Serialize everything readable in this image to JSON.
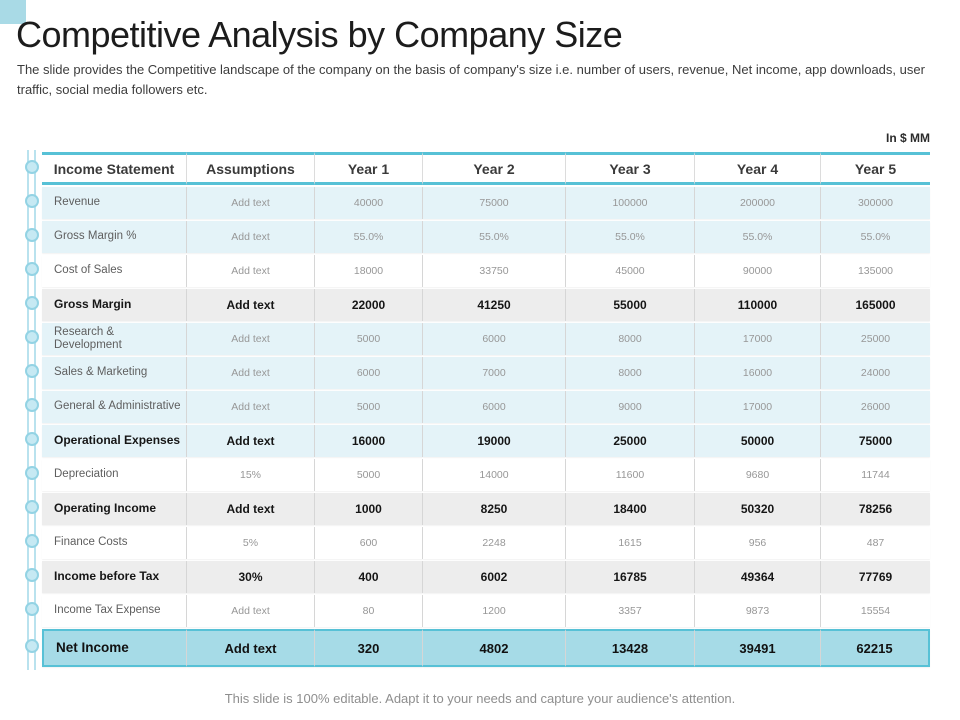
{
  "slide": {
    "title": "Competitive Analysis by Company Size",
    "subtitle": "The slide provides the Competitive landscape of the company on the basis of company's size i.e. number of users, revenue, Net income, app downloads, user traffic, social media followers etc.",
    "unit_label": "In $ MM",
    "footer": "This slide is 100% editable. Adapt it to your needs and capture your audience's attention."
  },
  "colors": {
    "accent_teal": "#57c1d6",
    "line_item_row_bg": "#e4f3f8",
    "subtotal_row_bg": "#ededed",
    "net_income_row_bg": "#a6dbe7",
    "corner_accent": "#a9dae6"
  },
  "table": {
    "columns": [
      "Income Statement",
      "Assumptions",
      "Year 1",
      "Year 2",
      "Year 3",
      "Year 4",
      "Year 5"
    ],
    "rows": [
      {
        "label": "Revenue",
        "cells": [
          "Add text",
          "40000",
          "75000",
          "100000",
          "200000",
          "300000"
        ],
        "bg": "blue",
        "bold": false
      },
      {
        "label": "Gross Margin %",
        "cells": [
          "Add text",
          "55.0%",
          "55.0%",
          "55.0%",
          "55.0%",
          "55.0%"
        ],
        "bg": "blue",
        "bold": false
      },
      {
        "label": "Cost of Sales",
        "cells": [
          "Add text",
          "18000",
          "33750",
          "45000",
          "90000",
          "135000"
        ],
        "bg": "white",
        "bold": false
      },
      {
        "label": "Gross Margin",
        "cells": [
          "Add text",
          "22000",
          "41250",
          "55000",
          "110000",
          "165000"
        ],
        "bg": "gray",
        "bold": true
      },
      {
        "label": "Research & Development",
        "cells": [
          "Add text",
          "5000",
          "6000",
          "8000",
          "17000",
          "25000"
        ],
        "bg": "blue",
        "bold": false
      },
      {
        "label": "Sales & Marketing",
        "cells": [
          "Add text",
          "6000",
          "7000",
          "8000",
          "16000",
          "24000"
        ],
        "bg": "blue",
        "bold": false
      },
      {
        "label": "General & Administrative",
        "cells": [
          "Add text",
          "5000",
          "6000",
          "9000",
          "17000",
          "26000"
        ],
        "bg": "blue",
        "bold": false
      },
      {
        "label": "Operational Expenses",
        "cells": [
          "Add text",
          "16000",
          "19000",
          "25000",
          "50000",
          "75000"
        ],
        "bg": "blue",
        "bold": true
      },
      {
        "label": "Depreciation",
        "cells": [
          "15%",
          "5000",
          "14000",
          "11600",
          "9680",
          "11744"
        ],
        "bg": "white",
        "bold": false
      },
      {
        "label": "Operating Income",
        "cells": [
          "Add text",
          "1000",
          "8250",
          "18400",
          "50320",
          "78256"
        ],
        "bg": "gray",
        "bold": true
      },
      {
        "label": "Finance Costs",
        "cells": [
          "5%",
          "600",
          "2248",
          "1615",
          "956",
          "487"
        ],
        "bg": "white",
        "bold": false
      },
      {
        "label": "Income before Tax",
        "cells": [
          "30%",
          "400",
          "6002",
          "16785",
          "49364",
          "77769"
        ],
        "bg": "gray",
        "bold": true
      },
      {
        "label": "Income Tax Expense",
        "cells": [
          "Add text",
          "80",
          "1200",
          "3357",
          "9873",
          "15554"
        ],
        "bg": "white",
        "bold": false
      },
      {
        "label": "Net Income",
        "cells": [
          "Add text",
          "320",
          "4802",
          "13428",
          "39491",
          "62215"
        ],
        "bg": "net",
        "bold": true
      }
    ]
  }
}
